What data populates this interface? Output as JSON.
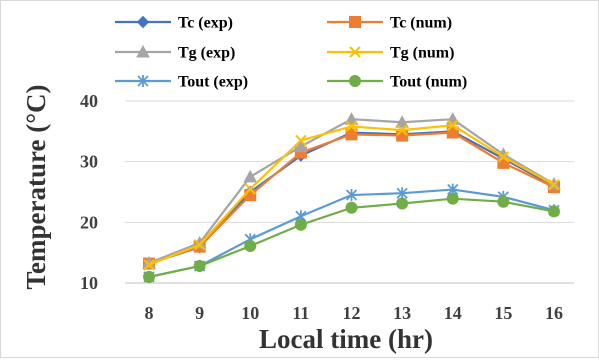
{
  "chart_data": {
    "type": "line",
    "xlabel": "Local time (hr)",
    "ylabel": "Temperature (°C)",
    "x": [
      8,
      9,
      10,
      11,
      12,
      13,
      14,
      15,
      16
    ],
    "xlim": [
      8,
      16
    ],
    "ylim": [
      10,
      40
    ],
    "yticks": [
      10,
      20,
      30,
      40
    ],
    "grid": "horizontal",
    "legend_placement": "top",
    "series": [
      {
        "name": "Tc (exp)",
        "color": "#4472c4",
        "marker": "diamond",
        "values": [
          13.2,
          15.9,
          25.0,
          31.0,
          34.8,
          34.5,
          35.0,
          30.5,
          26.0
        ]
      },
      {
        "name": "Tc (num)",
        "color": "#ed7d31",
        "marker": "square",
        "values": [
          13.2,
          16.0,
          24.5,
          31.5,
          34.5,
          34.3,
          34.8,
          29.8,
          25.8
        ]
      },
      {
        "name": "Tg (exp)",
        "color": "#a5a5a5",
        "marker": "triangle",
        "values": [
          13.3,
          16.6,
          27.5,
          32.5,
          37.0,
          36.5,
          37.0,
          31.2,
          26.3
        ]
      },
      {
        "name": "Tg (num)",
        "color": "#ffc000",
        "marker": "x",
        "values": [
          13.0,
          16.3,
          25.5,
          33.5,
          35.8,
          35.2,
          36.0,
          30.8,
          26.2
        ]
      },
      {
        "name": "Tout (exp)",
        "color": "#5b9bd5",
        "marker": "star",
        "values": [
          11.0,
          12.8,
          17.2,
          21.0,
          24.5,
          24.8,
          25.4,
          24.2,
          22.0
        ]
      },
      {
        "name": "Tout (num)",
        "color": "#70ad47",
        "marker": "circle",
        "values": [
          11.0,
          12.8,
          16.1,
          19.6,
          22.4,
          23.1,
          23.9,
          23.4,
          21.8
        ]
      }
    ]
  }
}
